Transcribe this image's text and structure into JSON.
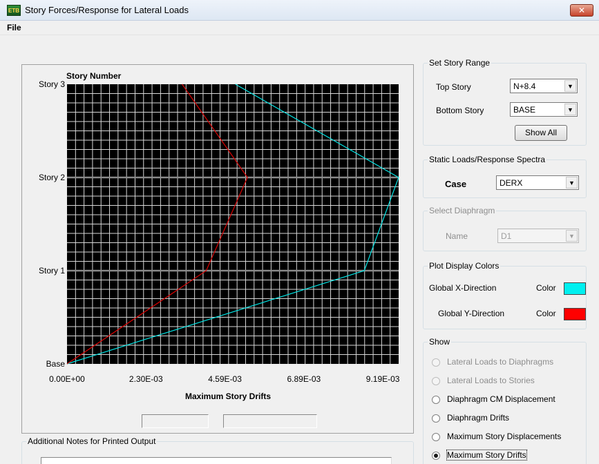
{
  "window": {
    "title": "Story Forces/Response for Lateral Loads",
    "close_glyph": "✕",
    "icon": "etabs-app-icon"
  },
  "menu": {
    "file": "File"
  },
  "chart_data": {
    "type": "line",
    "title": "Story Number",
    "xlabel": "Maximum Story Drifts",
    "ylabel": "Story Number",
    "x_ticks": [
      "0.00E+00",
      "2.30E-03",
      "4.59E-03",
      "6.89E-03",
      "9.19E-03"
    ],
    "y_categories": [
      "Base",
      "Story 1",
      "Story 2",
      "Story 3"
    ],
    "xlim": [
      0,
      0.00965
    ],
    "background": "#000000",
    "grid": true,
    "series": [
      {
        "color": "#00e5e5",
        "x": [
          0.0,
          0.00865,
          0.00965,
          0.0049
        ]
      },
      {
        "color": "#dd0000",
        "x": [
          0.0,
          0.00405,
          0.00525,
          0.00335
        ]
      }
    ]
  },
  "story_range": {
    "legend": "Set Story Range",
    "top_label": "Top Story",
    "top_value": "N+8.4",
    "bottom_label": "Bottom Story",
    "bottom_value": "BASE",
    "show_all": "Show All"
  },
  "static_loads": {
    "legend": "Static Loads/Response Spectra",
    "case_label": "Case",
    "case_value": "DERX"
  },
  "diaphragm": {
    "legend": "Select  Diaphragm",
    "name_label": "Name",
    "name_value": "D1"
  },
  "colors": {
    "legend": "Plot Display Colors",
    "x_label": "Global X-Direction",
    "y_label": "Global Y-Direction",
    "color_label": "Color",
    "x_color": "#00f0f0",
    "y_color": "#ff0000"
  },
  "show": {
    "legend": "Show",
    "options": [
      {
        "label": "Lateral Loads to Diaphragms",
        "enabled": false,
        "checked": false
      },
      {
        "label": "Lateral Loads to Stories",
        "enabled": false,
        "checked": false
      },
      {
        "label": "Diaphragm CM Displacement",
        "enabled": true,
        "checked": false
      },
      {
        "label": "Diaphragm Drifts",
        "enabled": true,
        "checked": false
      },
      {
        "label": "Maximum Story Displacements",
        "enabled": true,
        "checked": false
      },
      {
        "label": "Maximum Story Drifts",
        "enabled": true,
        "checked": true
      }
    ]
  },
  "notes": {
    "legend": "Additional Notes for Printed Output",
    "value": ""
  },
  "readouts": {
    "left": "",
    "right": ""
  }
}
